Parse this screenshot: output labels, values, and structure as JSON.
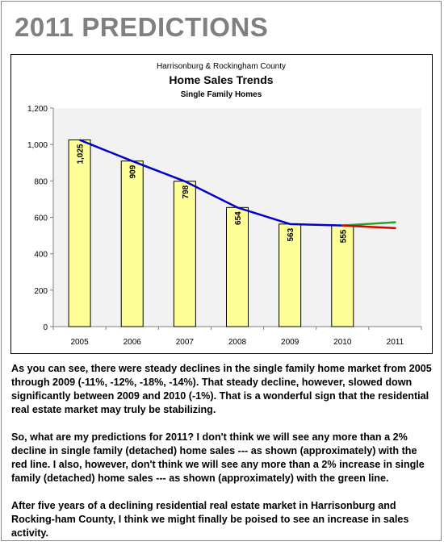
{
  "page": {
    "title": "2011 PREDICTIONS"
  },
  "chart_data": {
    "type": "bar",
    "header": "Harrisonburg & Rockingham County",
    "title": "Home Sales Trends",
    "subtitle": "Single Family Homes",
    "categories": [
      "2005",
      "2006",
      "2007",
      "2008",
      "2009",
      "2010",
      "2011"
    ],
    "series": [
      {
        "values": [
          1025,
          909,
          798,
          654,
          563,
          555,
          null
        ]
      }
    ],
    "value_labels": [
      "1,025",
      "909",
      "798",
      "654",
      "563",
      "555"
    ],
    "trend_line": {
      "color": "#0000cc",
      "values": [
        1025,
        909,
        798,
        654,
        563,
        555
      ]
    },
    "projections": [
      {
        "color": "#2ca02c",
        "from": [
          "2010",
          555
        ],
        "to": [
          "2011",
          573
        ]
      },
      {
        "color": "#dd0000",
        "from": [
          "2010",
          555
        ],
        "to": [
          "2011",
          541
        ]
      }
    ],
    "ylim": [
      0,
      1200
    ],
    "yticks": [
      0,
      200,
      400,
      600,
      800,
      1000,
      1200
    ],
    "ytick_labels": [
      "0",
      "200",
      "400",
      "600",
      "800",
      "1,000",
      "1,200"
    ],
    "grid": false,
    "bar_color": "#ffff99",
    "plot_background": "#f2f2f2"
  },
  "body": {
    "paragraphs": [
      "As you can see, there were steady declines in the single family home market from 2005 through 2009 (-11%, -12%, -18%, -14%).  That steady decline, however, slowed down significantly between 2009 and 2010 (-1%).  That is a wonderful sign that the residential real estate market may truly be stabilizing.",
      "So, what are my predictions for 2011?  I don't think we will see any more than a 2% decline in single family (detached) home sales --- as shown (approximately) with the red line.  I also, however, don't think we will see any more than a 2% increase in single family (detached) home sales --- as shown (approximately) with the green line.",
      "After five years of a declining residential real estate market in Harrisonburg and Rocking-ham County, I think we might finally be poised to see an increase in sales activity."
    ]
  }
}
